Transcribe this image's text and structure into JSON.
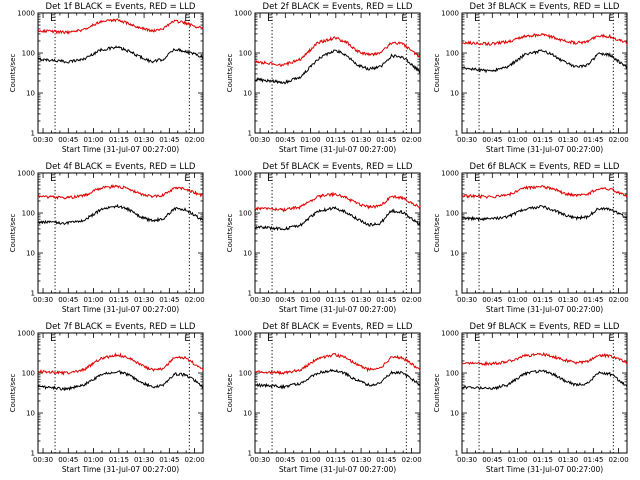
{
  "colors": {
    "events": "#000000",
    "lld": "#e00000"
  },
  "chart_data": [
    {
      "type": "line",
      "title": "Det 1f BLACK = Events, RED = LLD",
      "ylabel": "Counts/sec",
      "xlabel": "Start Time (31-Jul-07 00:27:00)",
      "yscale": "log",
      "ylim": [
        1,
        1000
      ],
      "yticks": [
        "1",
        "10",
        "100",
        "1000"
      ],
      "xticks": [
        "00:30",
        "00:45",
        "01:00",
        "01:15",
        "01:30",
        "01:45",
        "02:00"
      ],
      "marker_labels": [
        "E",
        "E"
      ],
      "series": [
        {
          "name": "Events",
          "color": "#000000",
          "x": [
            0,
            15,
            25,
            40,
            55,
            70,
            80,
            90,
            100,
            110,
            120,
            130,
            140,
            145
          ],
          "y": [
            70,
            65,
            60,
            70,
            120,
            140,
            110,
            80,
            60,
            70,
            125,
            110,
            90,
            80
          ]
        },
        {
          "name": "LLD",
          "color": "#e00000",
          "x": [
            0,
            15,
            25,
            40,
            55,
            70,
            80,
            90,
            100,
            110,
            120,
            130,
            140,
            145
          ],
          "y": [
            370,
            340,
            330,
            380,
            620,
            660,
            540,
            420,
            360,
            400,
            640,
            560,
            440,
            410
          ]
        }
      ]
    },
    {
      "type": "line",
      "title": "Det 2f BLACK = Events, RED = LLD",
      "ylabel": "Counts/sec",
      "xlabel": "Start Time (31-Jul-07 00:27:00)",
      "yscale": "log",
      "ylim": [
        1,
        1000
      ],
      "yticks": [
        "1",
        "10",
        "100",
        "1000"
      ],
      "xticks": [
        "00:30",
        "00:45",
        "01:00",
        "01:15",
        "01:30",
        "01:45",
        "02:00"
      ],
      "marker_labels": [
        "E",
        "E"
      ],
      "series": [
        {
          "name": "Events",
          "color": "#000000",
          "x": [
            0,
            15,
            25,
            40,
            55,
            70,
            80,
            90,
            100,
            110,
            120,
            130,
            140,
            145
          ],
          "y": [
            22,
            20,
            18,
            25,
            70,
            120,
            90,
            50,
            40,
            45,
            85,
            80,
            45,
            35
          ]
        },
        {
          "name": "LLD",
          "color": "#e00000",
          "x": [
            0,
            15,
            25,
            40,
            55,
            70,
            80,
            90,
            100,
            110,
            120,
            130,
            140,
            145
          ],
          "y": [
            60,
            55,
            50,
            70,
            180,
            240,
            190,
            110,
            90,
            100,
            180,
            170,
            100,
            80
          ]
        }
      ]
    },
    {
      "type": "line",
      "title": "Det 3f BLACK = Events, RED = LLD",
      "ylabel": "Counts/sec",
      "xlabel": "Start Time (31-Jul-07 00:27:00)",
      "yscale": "log",
      "ylim": [
        1,
        1000
      ],
      "yticks": [
        "1",
        "10",
        "100",
        "1000"
      ],
      "xticks": [
        "00:30",
        "00:45",
        "01:00",
        "01:15",
        "01:30",
        "01:45",
        "02:00"
      ],
      "marker_labels": [
        "E",
        "E"
      ],
      "series": [
        {
          "name": "Events",
          "color": "#000000",
          "x": [
            0,
            15,
            25,
            40,
            55,
            70,
            80,
            90,
            100,
            110,
            120,
            130,
            140,
            145
          ],
          "y": [
            42,
            38,
            35,
            45,
            90,
            115,
            90,
            60,
            45,
            50,
            95,
            90,
            55,
            45
          ]
        },
        {
          "name": "LLD",
          "color": "#e00000",
          "x": [
            0,
            15,
            25,
            40,
            55,
            70,
            80,
            90,
            100,
            110,
            120,
            130,
            140,
            145
          ],
          "y": [
            180,
            175,
            170,
            190,
            260,
            290,
            250,
            200,
            180,
            190,
            270,
            260,
            200,
            180
          ]
        }
      ]
    },
    {
      "type": "line",
      "title": "Det 4f BLACK = Events, RED = LLD",
      "ylabel": "Counts/sec",
      "xlabel": "Start Time (31-Jul-07 00:27:00)",
      "yscale": "log",
      "ylim": [
        1,
        1000
      ],
      "yticks": [
        "1",
        "10",
        "100",
        "1000"
      ],
      "xticks": [
        "00:30",
        "00:45",
        "01:00",
        "01:15",
        "01:30",
        "01:45",
        "02:00"
      ],
      "marker_labels": [
        "E",
        "E"
      ],
      "series": [
        {
          "name": "Events",
          "color": "#000000",
          "x": [
            0,
            15,
            25,
            40,
            55,
            70,
            80,
            90,
            100,
            110,
            120,
            130,
            140,
            145
          ],
          "y": [
            60,
            58,
            55,
            65,
            120,
            150,
            120,
            80,
            65,
            70,
            130,
            120,
            80,
            65
          ]
        },
        {
          "name": "LLD",
          "color": "#e00000",
          "x": [
            0,
            15,
            25,
            40,
            55,
            70,
            80,
            90,
            100,
            110,
            120,
            130,
            140,
            145
          ],
          "y": [
            260,
            250,
            240,
            270,
            420,
            470,
            400,
            300,
            260,
            280,
            420,
            400,
            300,
            270
          ]
        }
      ]
    },
    {
      "type": "line",
      "title": "Det 5f BLACK = Events, RED = LLD",
      "ylabel": "Counts/sec",
      "xlabel": "Start Time (31-Jul-07 00:27:00)",
      "yscale": "log",
      "ylim": [
        1,
        1000
      ],
      "yticks": [
        "1",
        "10",
        "100",
        "1000"
      ],
      "xticks": [
        "00:30",
        "00:45",
        "01:00",
        "01:15",
        "01:30",
        "01:45",
        "02:00"
      ],
      "marker_labels": [
        "E",
        "E"
      ],
      "series": [
        {
          "name": "Events",
          "color": "#000000",
          "x": [
            0,
            15,
            25,
            40,
            55,
            70,
            80,
            90,
            100,
            110,
            120,
            130,
            140,
            145
          ],
          "y": [
            45,
            42,
            40,
            50,
            110,
            135,
            105,
            70,
            50,
            55,
            115,
            105,
            65,
            50
          ]
        },
        {
          "name": "LLD",
          "color": "#e00000",
          "x": [
            0,
            15,
            25,
            40,
            55,
            70,
            80,
            90,
            100,
            110,
            120,
            130,
            140,
            145
          ],
          "y": [
            130,
            125,
            120,
            140,
            260,
            300,
            240,
            170,
            140,
            150,
            260,
            240,
            160,
            140
          ]
        }
      ]
    },
    {
      "type": "line",
      "title": "Det 6f BLACK = Events, RED = LLD",
      "ylabel": "Counts/sec",
      "xlabel": "Start Time (31-Jul-07 00:27:00)",
      "yscale": "log",
      "ylim": [
        1,
        1000
      ],
      "yticks": [
        "1",
        "10",
        "100",
        "1000"
      ],
      "xticks": [
        "00:30",
        "00:45",
        "01:00",
        "01:15",
        "01:30",
        "01:45",
        "02:00"
      ],
      "marker_labels": [
        "E",
        "E"
      ],
      "series": [
        {
          "name": "Events",
          "color": "#000000",
          "x": [
            0,
            15,
            25,
            40,
            55,
            70,
            80,
            90,
            100,
            110,
            120,
            130,
            140,
            145
          ],
          "y": [
            75,
            72,
            70,
            80,
            125,
            145,
            120,
            90,
            75,
            80,
            130,
            125,
            90,
            75
          ]
        },
        {
          "name": "LLD",
          "color": "#e00000",
          "x": [
            0,
            15,
            25,
            40,
            55,
            70,
            80,
            90,
            100,
            110,
            120,
            130,
            140,
            145
          ],
          "y": [
            270,
            260,
            250,
            280,
            420,
            470,
            400,
            310,
            270,
            290,
            420,
            400,
            300,
            270
          ]
        }
      ]
    },
    {
      "type": "line",
      "title": "Det 7f BLACK = Events, RED = LLD",
      "ylabel": "Counts/sec",
      "xlabel": "Start Time (31-Jul-07 00:27:00)",
      "yscale": "log",
      "ylim": [
        1,
        1000
      ],
      "yticks": [
        "1",
        "10",
        "100",
        "1000"
      ],
      "xticks": [
        "00:30",
        "00:45",
        "01:00",
        "01:15",
        "01:30",
        "01:45",
        "02:00"
      ],
      "marker_labels": [
        "E",
        "E"
      ],
      "series": [
        {
          "name": "Events",
          "color": "#000000",
          "x": [
            0,
            15,
            25,
            40,
            55,
            70,
            80,
            90,
            100,
            110,
            120,
            130,
            140,
            145
          ],
          "y": [
            45,
            42,
            40,
            50,
            90,
            110,
            90,
            60,
            45,
            50,
            95,
            90,
            60,
            45
          ]
        },
        {
          "name": "LLD",
          "color": "#e00000",
          "x": [
            0,
            15,
            25,
            40,
            55,
            70,
            80,
            90,
            100,
            110,
            120,
            130,
            140,
            145
          ],
          "y": [
            110,
            105,
            100,
            120,
            230,
            290,
            240,
            160,
            120,
            130,
            250,
            240,
            150,
            120
          ]
        }
      ]
    },
    {
      "type": "line",
      "title": "Det 8f BLACK = Events, RED = LLD",
      "ylabel": "Counts/sec",
      "xlabel": "Start Time (31-Jul-07 00:27:00)",
      "yscale": "log",
      "ylim": [
        1,
        1000
      ],
      "yticks": [
        "1",
        "10",
        "100",
        "1000"
      ],
      "xticks": [
        "00:30",
        "00:45",
        "01:00",
        "01:15",
        "01:30",
        "01:45",
        "02:00"
      ],
      "marker_labels": [
        "E",
        "E"
      ],
      "series": [
        {
          "name": "Events",
          "color": "#000000",
          "x": [
            0,
            15,
            25,
            40,
            55,
            70,
            80,
            90,
            100,
            110,
            120,
            130,
            140,
            145
          ],
          "y": [
            50,
            48,
            45,
            55,
            100,
            120,
            95,
            65,
            50,
            55,
            105,
            100,
            65,
            50
          ]
        },
        {
          "name": "LLD",
          "color": "#e00000",
          "x": [
            0,
            15,
            25,
            40,
            55,
            70,
            80,
            90,
            100,
            110,
            120,
            130,
            140,
            145
          ],
          "y": [
            110,
            105,
            100,
            120,
            230,
            290,
            240,
            160,
            120,
            130,
            250,
            240,
            150,
            120
          ]
        }
      ]
    },
    {
      "type": "line",
      "title": "Det 9f BLACK = Events, RED = LLD",
      "ylabel": "Counts/sec",
      "xlabel": "Start Time (31-Jul-07 00:27:00)",
      "yscale": "log",
      "ylim": [
        1,
        1000
      ],
      "yticks": [
        "1",
        "10",
        "100",
        "1000"
      ],
      "xticks": [
        "00:30",
        "00:45",
        "01:00",
        "01:15",
        "01:30",
        "01:45",
        "02:00"
      ],
      "marker_labels": [
        "E",
        "E"
      ],
      "series": [
        {
          "name": "Events",
          "color": "#000000",
          "x": [
            0,
            15,
            25,
            40,
            55,
            70,
            80,
            90,
            100,
            110,
            120,
            130,
            140,
            145
          ],
          "y": [
            45,
            42,
            40,
            50,
            95,
            115,
            95,
            65,
            50,
            55,
            100,
            95,
            60,
            45
          ]
        },
        {
          "name": "LLD",
          "color": "#e00000",
          "x": [
            0,
            15,
            25,
            40,
            55,
            70,
            80,
            90,
            100,
            110,
            120,
            130,
            140,
            145
          ],
          "y": [
            180,
            175,
            170,
            190,
            270,
            300,
            260,
            210,
            180,
            195,
            280,
            270,
            210,
            180
          ]
        }
      ]
    }
  ]
}
